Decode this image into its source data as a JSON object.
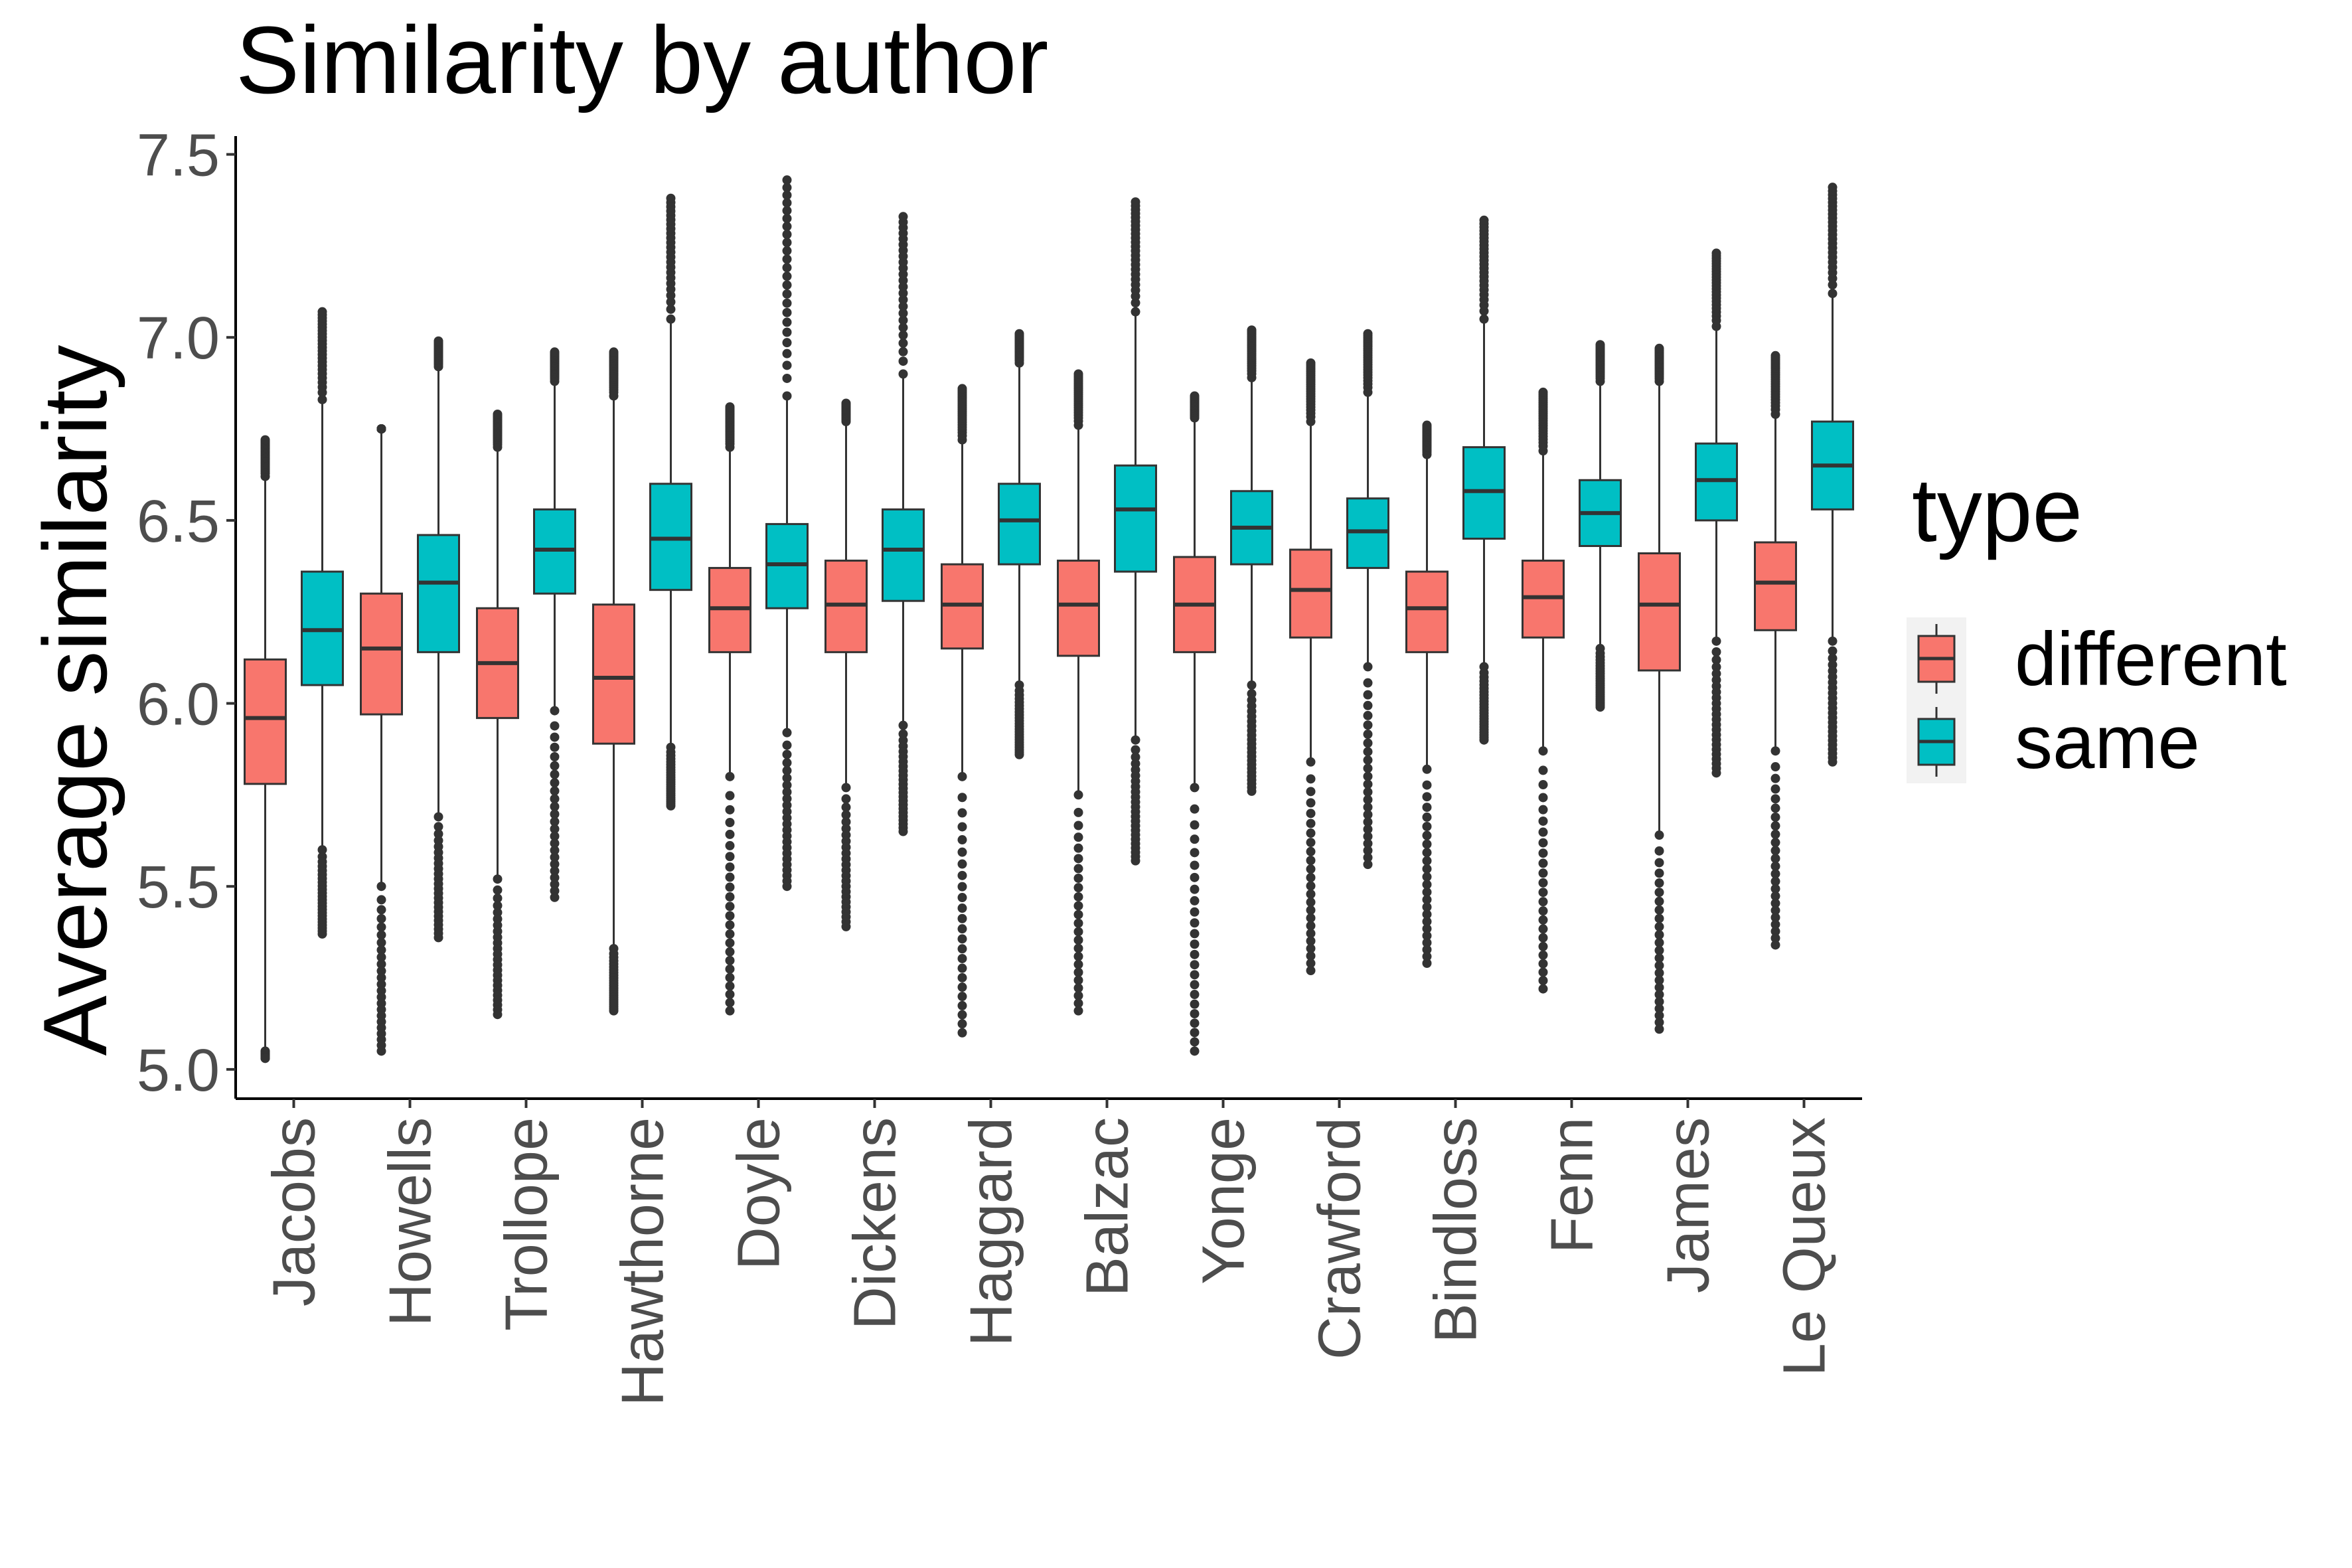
{
  "chart_data": {
    "type": "boxplot",
    "title": "Similarity by author",
    "ylabel": "Average similarity",
    "xlabel": "",
    "ylim": [
      4.92,
      7.55
    ],
    "yticks": [
      5.0,
      5.5,
      6.0,
      6.5,
      7.0,
      7.5
    ],
    "ytick_labels": [
      "5.0",
      "5.5",
      "6.0",
      "6.5",
      "7.0",
      "7.5"
    ],
    "grid": false,
    "legend": {
      "title": "type",
      "placement": "right",
      "entries": [
        {
          "name": "different",
          "color": "#F8766D"
        },
        {
          "name": "same",
          "color": "#00BFC4"
        }
      ]
    },
    "categories": [
      "Jacobs",
      "Howells",
      "Trollope",
      "Hawthorne",
      "Doyle",
      "Dickens",
      "Haggard",
      "Balzac",
      "Yonge",
      "Crawford",
      "Bindloss",
      "Fenn",
      "James",
      "Le Queux"
    ],
    "series": [
      {
        "name": "different",
        "color": "#F8766D",
        "boxes": [
          {
            "lw": 5.05,
            "q1": 5.78,
            "med": 5.96,
            "q3": 6.12,
            "uw": 6.62,
            "out_min": 5.03,
            "out_max": 6.72
          },
          {
            "lw": 5.5,
            "q1": 5.97,
            "med": 6.15,
            "q3": 6.3,
            "uw": 6.75,
            "out_min": 5.05,
            "out_max": 6.75
          },
          {
            "lw": 5.52,
            "q1": 5.96,
            "med": 6.11,
            "q3": 6.26,
            "uw": 6.7,
            "out_min": 5.15,
            "out_max": 6.79
          },
          {
            "lw": 5.33,
            "q1": 5.89,
            "med": 6.07,
            "q3": 6.27,
            "uw": 6.84,
            "out_min": 5.16,
            "out_max": 6.96
          },
          {
            "lw": 5.8,
            "q1": 6.14,
            "med": 6.26,
            "q3": 6.37,
            "uw": 6.7,
            "out_min": 5.16,
            "out_max": 6.81
          },
          {
            "lw": 5.77,
            "q1": 6.14,
            "med": 6.27,
            "q3": 6.39,
            "uw": 6.77,
            "out_min": 5.39,
            "out_max": 6.82
          },
          {
            "lw": 5.8,
            "q1": 6.15,
            "med": 6.27,
            "q3": 6.38,
            "uw": 6.72,
            "out_min": 5.1,
            "out_max": 6.86
          },
          {
            "lw": 5.75,
            "q1": 6.13,
            "med": 6.27,
            "q3": 6.39,
            "uw": 6.76,
            "out_min": 5.16,
            "out_max": 6.9
          },
          {
            "lw": 5.77,
            "q1": 6.14,
            "med": 6.27,
            "q3": 6.4,
            "uw": 6.78,
            "out_min": 5.05,
            "out_max": 6.84
          },
          {
            "lw": 5.84,
            "q1": 6.18,
            "med": 6.31,
            "q3": 6.42,
            "uw": 6.77,
            "out_min": 5.27,
            "out_max": 6.93
          },
          {
            "lw": 5.82,
            "q1": 6.14,
            "med": 6.26,
            "q3": 6.36,
            "uw": 6.68,
            "out_min": 5.29,
            "out_max": 6.76
          },
          {
            "lw": 5.87,
            "q1": 6.18,
            "med": 6.29,
            "q3": 6.39,
            "uw": 6.69,
            "out_min": 5.22,
            "out_max": 6.85
          },
          {
            "lw": 5.64,
            "q1": 6.09,
            "med": 6.27,
            "q3": 6.41,
            "uw": 6.88,
            "out_min": 5.11,
            "out_max": 6.97
          },
          {
            "lw": 5.87,
            "q1": 6.2,
            "med": 6.33,
            "q3": 6.44,
            "uw": 6.79,
            "out_min": 5.34,
            "out_max": 6.95
          }
        ]
      },
      {
        "name": "same",
        "color": "#00BFC4",
        "boxes": [
          {
            "lw": 5.6,
            "q1": 6.05,
            "med": 6.2,
            "q3": 6.36,
            "uw": 6.83,
            "out_min": 5.37,
            "out_max": 7.07
          },
          {
            "lw": 5.69,
            "q1": 6.14,
            "med": 6.33,
            "q3": 6.46,
            "uw": 6.92,
            "out_min": 5.36,
            "out_max": 6.99
          },
          {
            "lw": 5.98,
            "q1": 6.3,
            "med": 6.42,
            "q3": 6.53,
            "uw": 6.88,
            "out_min": 5.47,
            "out_max": 6.96
          },
          {
            "lw": 5.88,
            "q1": 6.31,
            "med": 6.45,
            "q3": 6.6,
            "uw": 7.05,
            "out_min": 5.72,
            "out_max": 7.38
          },
          {
            "lw": 5.92,
            "q1": 6.26,
            "med": 6.38,
            "q3": 6.49,
            "uw": 6.84,
            "out_min": 5.5,
            "out_max": 7.43
          },
          {
            "lw": 5.94,
            "q1": 6.28,
            "med": 6.42,
            "q3": 6.53,
            "uw": 6.9,
            "out_min": 5.65,
            "out_max": 7.33
          },
          {
            "lw": 6.05,
            "q1": 6.38,
            "med": 6.5,
            "q3": 6.6,
            "uw": 6.93,
            "out_min": 5.86,
            "out_max": 7.01
          },
          {
            "lw": 5.9,
            "q1": 6.36,
            "med": 6.53,
            "q3": 6.65,
            "uw": 7.07,
            "out_min": 5.57,
            "out_max": 7.37
          },
          {
            "lw": 6.05,
            "q1": 6.38,
            "med": 6.48,
            "q3": 6.58,
            "uw": 6.89,
            "out_min": 5.76,
            "out_max": 7.02
          },
          {
            "lw": 6.1,
            "q1": 6.37,
            "med": 6.47,
            "q3": 6.56,
            "uw": 6.85,
            "out_min": 5.56,
            "out_max": 7.01
          },
          {
            "lw": 6.1,
            "q1": 6.45,
            "med": 6.58,
            "q3": 6.7,
            "uw": 7.05,
            "out_min": 5.9,
            "out_max": 7.32
          },
          {
            "lw": 6.15,
            "q1": 6.43,
            "med": 6.52,
            "q3": 6.61,
            "uw": 6.88,
            "out_min": 5.99,
            "out_max": 6.98
          },
          {
            "lw": 6.17,
            "q1": 6.5,
            "med": 6.61,
            "q3": 6.71,
            "uw": 7.03,
            "out_min": 5.81,
            "out_max": 7.23
          },
          {
            "lw": 6.17,
            "q1": 6.53,
            "med": 6.65,
            "q3": 6.77,
            "uw": 7.12,
            "out_min": 5.84,
            "out_max": 7.41
          }
        ]
      }
    ]
  }
}
